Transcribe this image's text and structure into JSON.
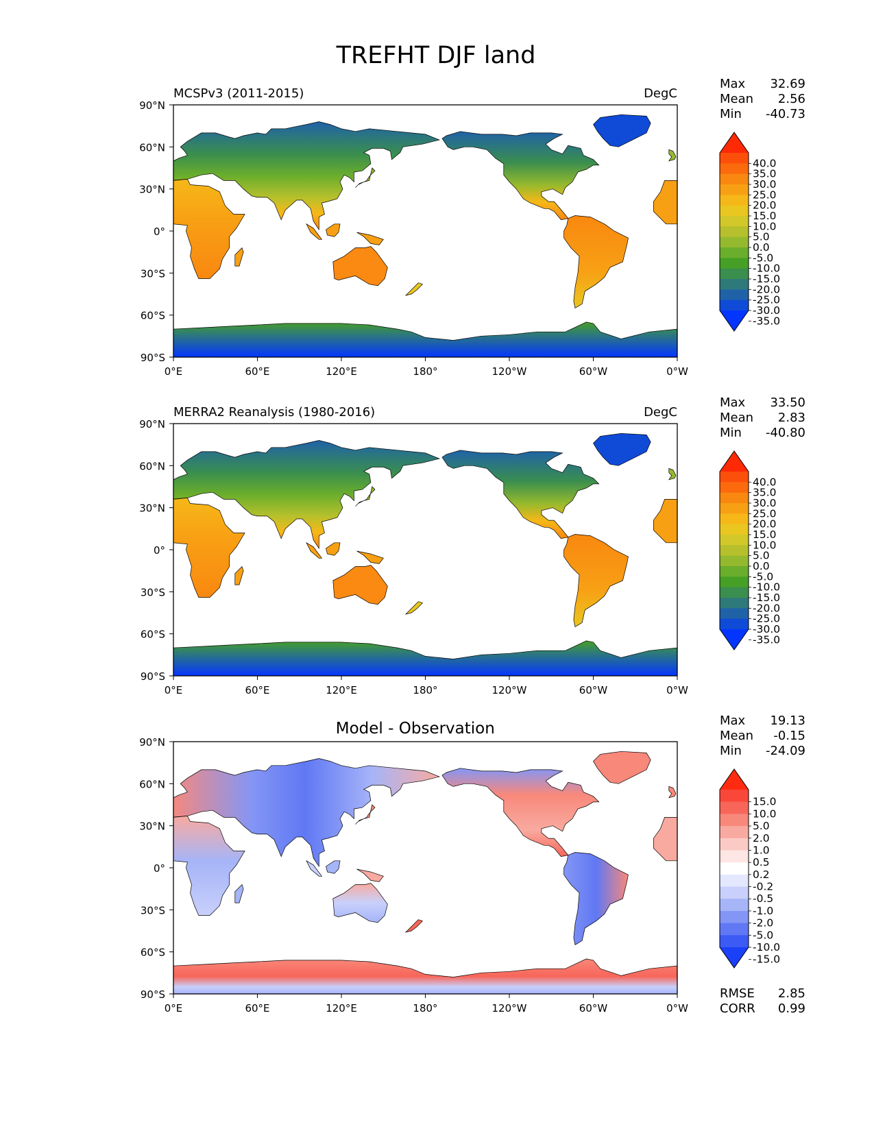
{
  "figure": {
    "title": "TREFHT DJF land"
  },
  "axes": {
    "lat_ticks": [
      "90°N",
      "60°N",
      "30°N",
      "0°",
      "30°S",
      "60°S",
      "90°S"
    ],
    "lon_ticks": [
      "0°E",
      "60°E",
      "120°E",
      "180°",
      "120°W",
      "60°W",
      "0°W"
    ]
  },
  "panels": [
    {
      "id": "model",
      "title_left": "MCSPv3 (2011-2015)",
      "title_right": "DegC",
      "title_center": "",
      "colormap": "temperature",
      "stats": [
        {
          "label": "Max",
          "value": "32.69"
        },
        {
          "label": "Mean",
          "value": "2.56"
        },
        {
          "label": "Min",
          "value": "-40.73"
        }
      ],
      "colorbar": {
        "labels": [
          "40.0",
          "35.0",
          "30.0",
          "25.0",
          "20.0",
          "15.0",
          "10.0",
          "5.0",
          "0.0",
          "-5.0",
          "-10.0",
          "-15.0",
          "-20.0",
          "-25.0",
          "-30.0",
          "-35.0"
        ],
        "colors": [
          "#fe2a06",
          "#fc4f0a",
          "#fb6a0c",
          "#f98810",
          "#f8a014",
          "#f6b818",
          "#e9c620",
          "#d2c82a",
          "#b6c02c",
          "#94b92e",
          "#6aae2c",
          "#46a026",
          "#3a8e4e",
          "#2e7a7a",
          "#1f62a8",
          "#0f4bd6",
          "#0435ff"
        ]
      },
      "extra_stats": []
    },
    {
      "id": "obs",
      "title_left": "MERRA2 Reanalysis (1980-2016)",
      "title_right": "DegC",
      "title_center": "",
      "colormap": "temperature",
      "stats": [
        {
          "label": "Max",
          "value": "33.50"
        },
        {
          "label": "Mean",
          "value": "2.83"
        },
        {
          "label": "Min",
          "value": "-40.80"
        }
      ],
      "colorbar": {
        "labels": [
          "40.0",
          "35.0",
          "30.0",
          "25.0",
          "20.0",
          "15.0",
          "10.0",
          "5.0",
          "0.0",
          "-5.0",
          "-10.0",
          "-15.0",
          "-20.0",
          "-25.0",
          "-30.0",
          "-35.0"
        ],
        "colors": [
          "#fe2a06",
          "#fc4f0a",
          "#fb6a0c",
          "#f98810",
          "#f8a014",
          "#f6b818",
          "#e9c620",
          "#d2c82a",
          "#b6c02c",
          "#94b92e",
          "#6aae2c",
          "#46a026",
          "#3a8e4e",
          "#2e7a7a",
          "#1f62a8",
          "#0f4bd6",
          "#0435ff"
        ]
      },
      "extra_stats": []
    },
    {
      "id": "diff",
      "title_left": "",
      "title_right": "",
      "title_center": "Model - Observation",
      "colormap": "difference",
      "stats": [
        {
          "label": "Max",
          "value": "19.13"
        },
        {
          "label": "Mean",
          "value": "-0.15"
        },
        {
          "label": "Min",
          "value": "-24.09"
        }
      ],
      "colorbar": {
        "labels": [
          "15.0",
          "10.0",
          "5.0",
          "2.0",
          "1.0",
          "0.5",
          "0.2",
          "-0.2",
          "-0.5",
          "-1.0",
          "-2.0",
          "-5.0",
          "-10.0",
          "-15.0"
        ],
        "colors": [
          "#ff2b10",
          "#f9483a",
          "#f8665a",
          "#f8887a",
          "#f9aaa0",
          "#fbcac4",
          "#fde6e4",
          "#ffffff",
          "#e4e8ff",
          "#c8d0fb",
          "#a6b4f8",
          "#8496f5",
          "#6078f4",
          "#3c5af4",
          "#1a40f8"
        ]
      },
      "extra_stats": [
        {
          "label": "RMSE",
          "value": "2.85"
        },
        {
          "label": "CORR",
          "value": "0.99"
        }
      ]
    }
  ]
}
